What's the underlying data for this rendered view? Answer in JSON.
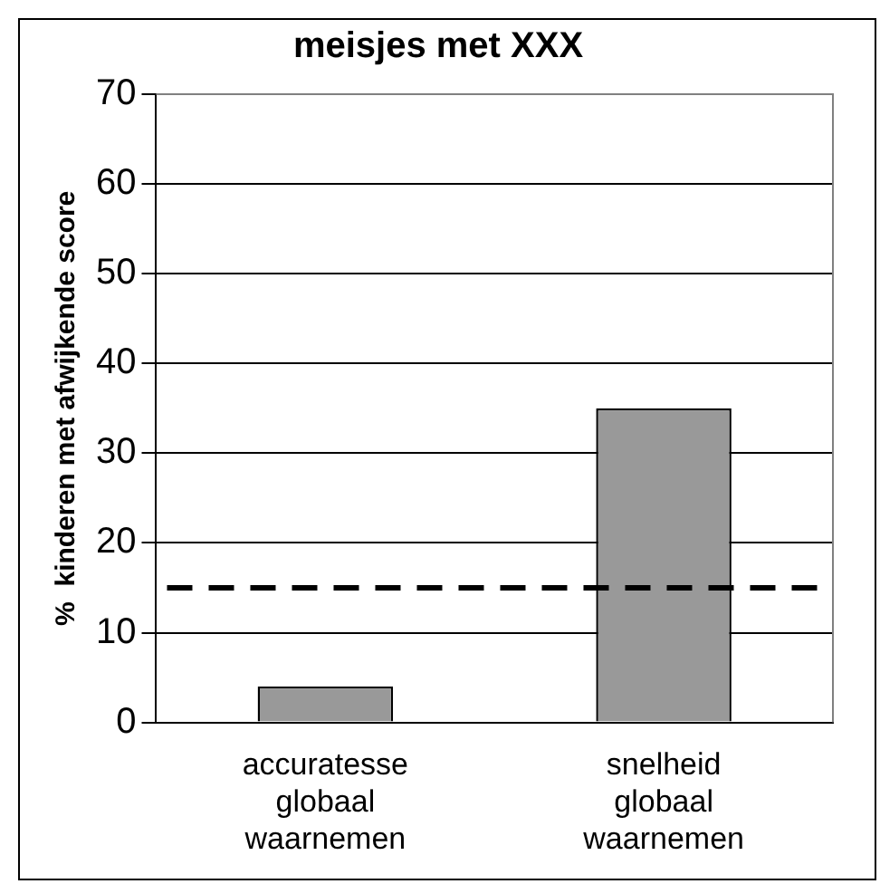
{
  "chart_data": {
    "type": "bar",
    "title": "meisjes met XXX",
    "ylabel": "%  kinderen met afwijkende score",
    "categories": [
      "accuratesse globaal waarnemen",
      "snelheid globaal waarnemen"
    ],
    "values": [
      4,
      35
    ],
    "color": "#999999",
    "ylim": [
      0,
      70
    ],
    "yticks": [
      0,
      10,
      20,
      30,
      40,
      50,
      60,
      70
    ],
    "grid": "y",
    "legend": false,
    "ref_lines": [
      {
        "axis": "y",
        "value": 15,
        "color": "#000000",
        "line_style": "dashed"
      }
    ]
  }
}
